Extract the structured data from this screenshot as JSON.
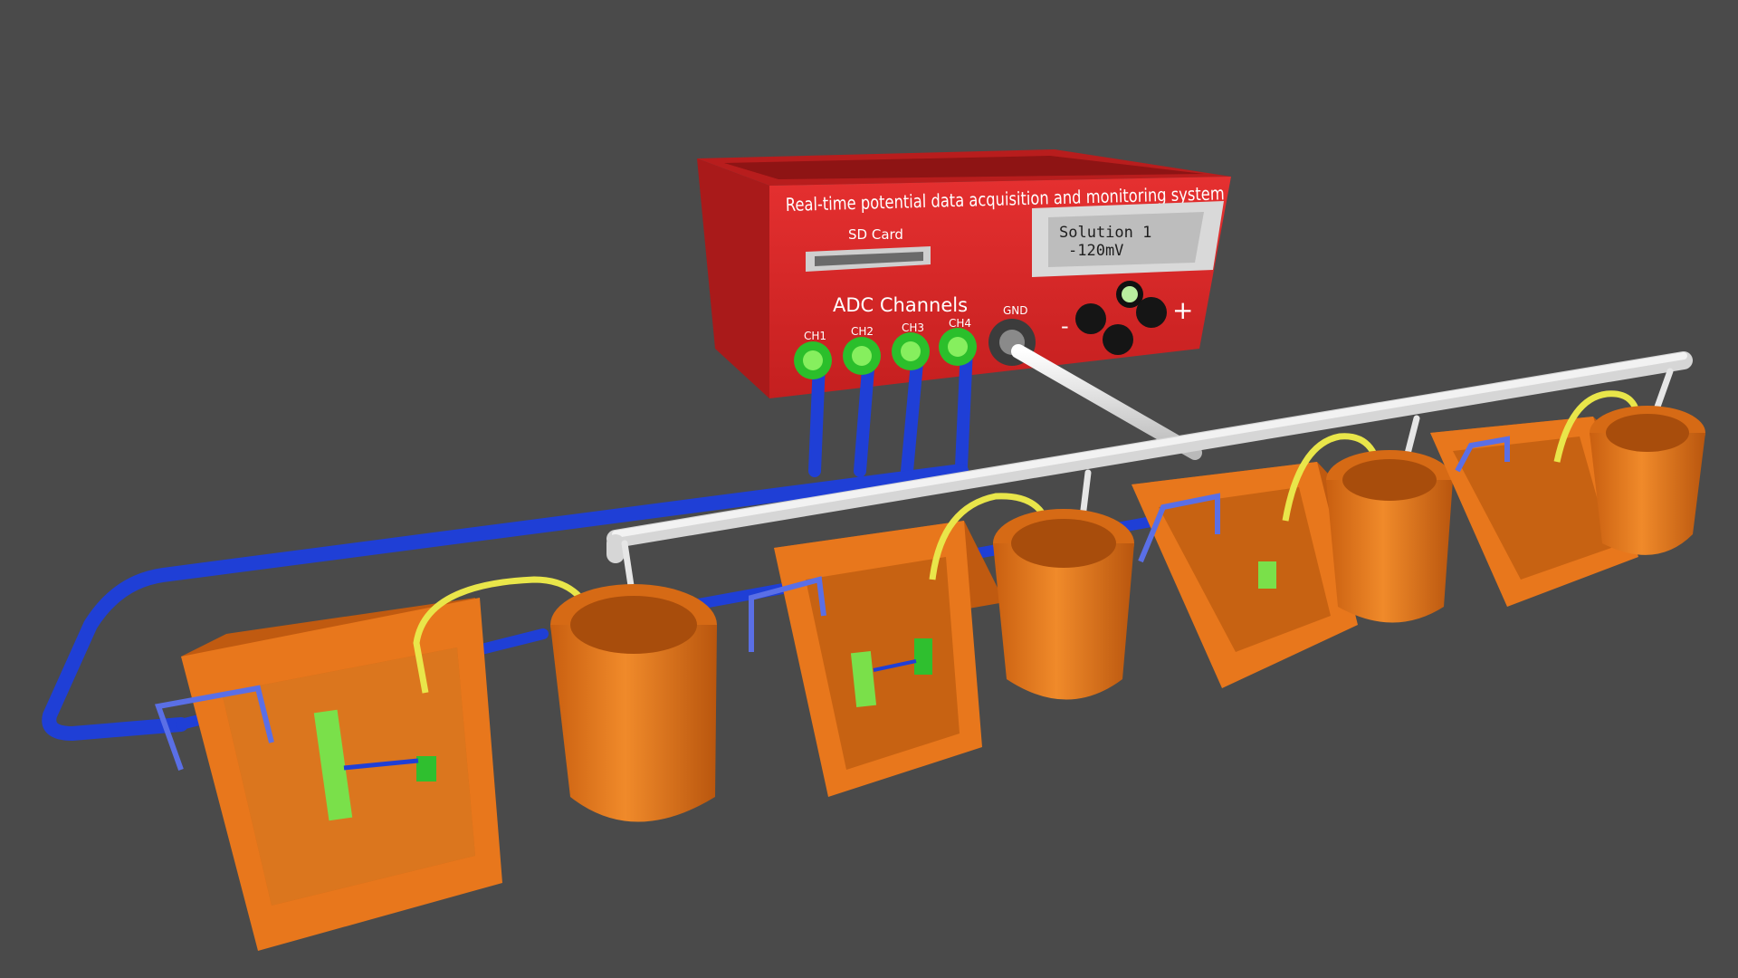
{
  "device": {
    "title": "Real-time potential data acquisition and monitoring system",
    "sd_label": "SD Card",
    "adc_label": "ADC Channels",
    "channels": [
      "CH1",
      "CH2",
      "CH3",
      "CH4"
    ],
    "gnd_label": "GND",
    "display": {
      "line1": "Solution 1",
      "line2": "-120mV"
    },
    "minus": "-",
    "plus": "+"
  },
  "colors": {
    "background": "#4a4a4a",
    "enclosure": "#d42a2a",
    "signal_cable": "#1f3fd6",
    "ground_cable": "#e6e6e6",
    "salt_bridge": "#e9e64a",
    "container": "#e8771c",
    "electrode_clip": "#7ae04a"
  },
  "icons": [
    "sd-card-slot-icon",
    "jog-buttons-icon"
  ],
  "cell_count": 4
}
